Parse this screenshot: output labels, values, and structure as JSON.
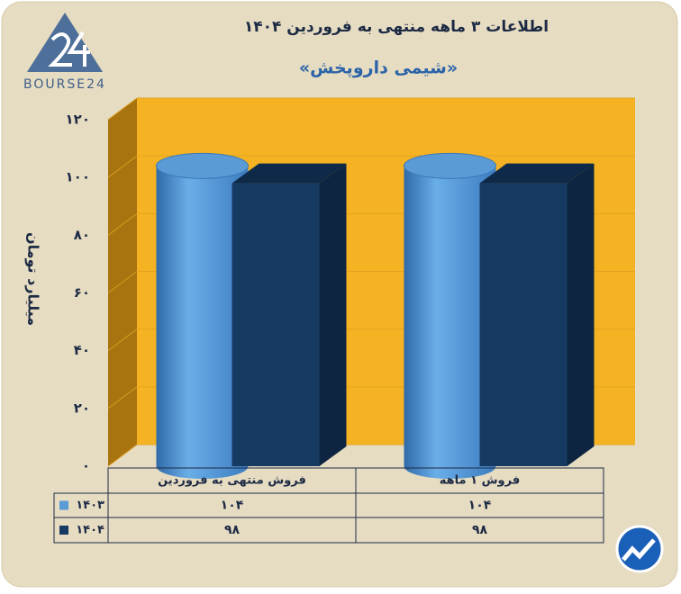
{
  "chart_data": {
    "type": "bar3d",
    "title": "اطلاعات ۳ ماهه منتهی به فروردین ۱۴۰۴",
    "subtitle": "«شیمی داروپخش»",
    "y_label": "میلیارد تومان",
    "categories": [
      "فروش منتهی به  فروردین",
      "فروش ۱ ماهه"
    ],
    "series": [
      {
        "name": "۱۴۰۳",
        "color": "#5b9bd5",
        "shape": "cylinder",
        "values": [
          104,
          104
        ],
        "value_labels": [
          "۱۰۴",
          "۱۰۴"
        ]
      },
      {
        "name": "۱۴۰۴",
        "color": "#173a63",
        "shape": "box",
        "values": [
          98,
          98
        ],
        "value_labels": [
          "۹۸",
          "۹۸"
        ]
      }
    ],
    "ylim": [
      0,
      120
    ],
    "yticks": [
      {
        "value": 0,
        "label": "۰"
      },
      {
        "value": 20,
        "label": "۲۰"
      },
      {
        "value": 40,
        "label": "۴۰"
      },
      {
        "value": 60,
        "label": "۶۰"
      },
      {
        "value": 80,
        "label": "۸۰"
      },
      {
        "value": 100,
        "label": "۱۰۰"
      },
      {
        "value": 120,
        "label": "۱۲۰"
      }
    ],
    "grid": true,
    "wall_color": "#f5b323"
  },
  "logo": {
    "text": "BOURSE24"
  }
}
